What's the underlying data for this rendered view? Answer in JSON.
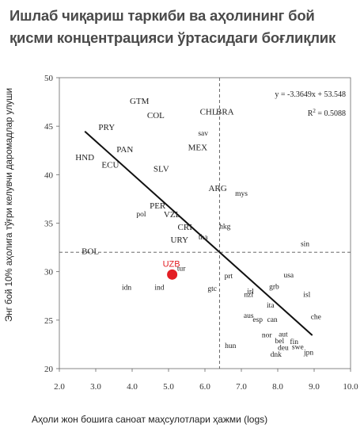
{
  "title_lines": [
    "Ишлаб чиқариш таркиби ва аҳолининг бой",
    "қисми концентрацияси ўртасидаги боғлиқлик"
  ],
  "chart_data": {
    "type": "scatter",
    "xlabel": "Аҳоли жон бошига саноат маҳсулотлари ҳажми (logs)",
    "ylabel": "Энг бой 10% аҳолига тўғри келувчи даромадлар улуши",
    "xlim": [
      2.0,
      10.0
    ],
    "ylim": [
      20,
      50
    ],
    "x_ticks": [
      "2.0",
      "3.0",
      "4.0",
      "5.0",
      "6.0",
      "7.0",
      "8.0",
      "9.0",
      "10.0"
    ],
    "y_ticks": [
      "20",
      "25",
      "30",
      "35",
      "40",
      "45",
      "50"
    ],
    "regression": {
      "equation": "y = -3.3649x + 53.548",
      "r2_label": "R",
      "r2_sup": "2",
      "r2_value": " = 0.5088",
      "slope": -3.3649,
      "intercept": 53.548,
      "x_from": 2.7,
      "x_to": 8.95
    },
    "reference_lines": {
      "x": 6.4,
      "y": 32
    },
    "highlight": {
      "label": "UZB",
      "x": 5.1,
      "y": 29.7,
      "color": "#e31e24"
    },
    "points": [
      {
        "label": "GTM",
        "x": 4.2,
        "y": 47.6,
        "cls": "caps"
      },
      {
        "label": "CHL",
        "x": 6.1,
        "y": 46.5,
        "cls": "caps"
      },
      {
        "label": "BRA",
        "x": 6.55,
        "y": 46.5,
        "cls": "caps"
      },
      {
        "label": "COL",
        "x": 4.65,
        "y": 46.1,
        "cls": "caps"
      },
      {
        "label": "PRY",
        "x": 3.3,
        "y": 44.9,
        "cls": "caps"
      },
      {
        "label": "sav",
        "x": 5.95,
        "y": 44.3,
        "cls": "small"
      },
      {
        "label": "PAN",
        "x": 3.8,
        "y": 42.6,
        "cls": "caps"
      },
      {
        "label": "MEX",
        "x": 5.8,
        "y": 42.8,
        "cls": "caps"
      },
      {
        "label": "HND",
        "x": 2.7,
        "y": 41.8,
        "cls": "caps"
      },
      {
        "label": "ECU",
        "x": 3.4,
        "y": 41.0,
        "cls": "caps"
      },
      {
        "label": "SLV",
        "x": 4.8,
        "y": 40.6,
        "cls": "caps"
      },
      {
        "label": "ARG",
        "x": 6.35,
        "y": 38.6,
        "cls": "caps"
      },
      {
        "label": "mys",
        "x": 7.0,
        "y": 38.1,
        "cls": "small"
      },
      {
        "label": "PER",
        "x": 4.7,
        "y": 36.8,
        "cls": "caps"
      },
      {
        "label": "pol",
        "x": 4.25,
        "y": 36.0,
        "cls": "small"
      },
      {
        "label": "VZL",
        "x": 5.1,
        "y": 35.9,
        "cls": "caps"
      },
      {
        "label": "CRI",
        "x": 5.45,
        "y": 34.6,
        "cls": "caps"
      },
      {
        "label": "hkg",
        "x": 6.55,
        "y": 34.7,
        "cls": "small"
      },
      {
        "label": "tha",
        "x": 5.95,
        "y": 33.6,
        "cls": "small"
      },
      {
        "label": "URY",
        "x": 5.3,
        "y": 33.3,
        "cls": "caps"
      },
      {
        "label": "BOL",
        "x": 2.85,
        "y": 32.1,
        "cls": "caps"
      },
      {
        "label": "sin",
        "x": 8.75,
        "y": 32.9,
        "cls": "small"
      },
      {
        "label": "tur",
        "x": 5.35,
        "y": 30.4,
        "cls": "small"
      },
      {
        "label": "prt",
        "x": 6.65,
        "y": 29.6,
        "cls": "small"
      },
      {
        "label": "usa",
        "x": 8.3,
        "y": 29.7,
        "cls": "small"
      },
      {
        "label": "idn",
        "x": 3.85,
        "y": 28.4,
        "cls": "small"
      },
      {
        "label": "ind",
        "x": 4.75,
        "y": 28.4,
        "cls": "small"
      },
      {
        "label": "gtc",
        "x": 6.2,
        "y": 28.3,
        "cls": "small"
      },
      {
        "label": "grb",
        "x": 7.9,
        "y": 28.5,
        "cls": "small"
      },
      {
        "label": "irl",
        "x": 7.25,
        "y": 28.0,
        "cls": "small"
      },
      {
        "label": "nzl",
        "x": 7.2,
        "y": 27.7,
        "cls": "small"
      },
      {
        "label": "isl",
        "x": 8.8,
        "y": 27.7,
        "cls": "small"
      },
      {
        "label": "ita",
        "x": 7.8,
        "y": 26.6,
        "cls": "small"
      },
      {
        "label": "che",
        "x": 9.05,
        "y": 25.4,
        "cls": "small"
      },
      {
        "label": "aus",
        "x": 7.2,
        "y": 25.5,
        "cls": "small"
      },
      {
        "label": "esp",
        "x": 7.45,
        "y": 25.1,
        "cls": "small"
      },
      {
        "label": "can",
        "x": 7.85,
        "y": 25.1,
        "cls": "small"
      },
      {
        "label": "nor",
        "x": 7.7,
        "y": 23.5,
        "cls": "small"
      },
      {
        "label": "aut",
        "x": 8.15,
        "y": 23.6,
        "cls": "small"
      },
      {
        "label": "bel",
        "x": 8.05,
        "y": 22.9,
        "cls": "small"
      },
      {
        "label": "fin",
        "x": 8.45,
        "y": 22.8,
        "cls": "small"
      },
      {
        "label": "deu",
        "x": 8.15,
        "y": 22.2,
        "cls": "small"
      },
      {
        "label": "swe",
        "x": 8.55,
        "y": 22.3,
        "cls": "small"
      },
      {
        "label": "hun",
        "x": 6.7,
        "y": 22.4,
        "cls": "small"
      },
      {
        "label": "dnk",
        "x": 7.95,
        "y": 21.5,
        "cls": "small"
      },
      {
        "label": "jpn",
        "x": 8.85,
        "y": 21.7,
        "cls": "small"
      }
    ]
  }
}
